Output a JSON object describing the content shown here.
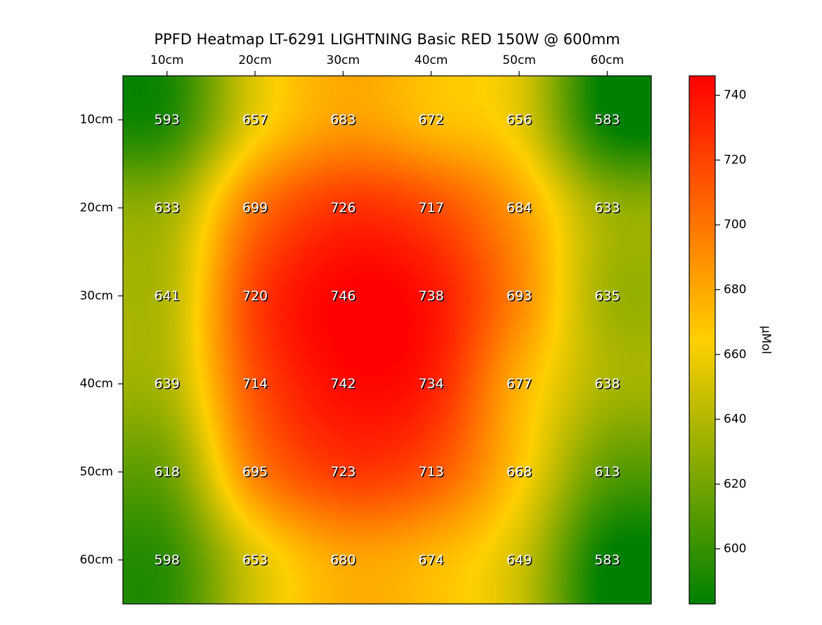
{
  "chart_data": {
    "type": "heatmap",
    "title": "PPFD Heatmap LT-6291 LIGHTNING Basic RED 150W @ 600mm",
    "x_categories": [
      "10cm",
      "20cm",
      "30cm",
      "40cm",
      "50cm",
      "60cm"
    ],
    "y_categories": [
      "10cm",
      "20cm",
      "30cm",
      "40cm",
      "50cm",
      "60cm"
    ],
    "x_axis_position": "top",
    "values": [
      [
        593,
        657,
        683,
        672,
        656,
        583
      ],
      [
        633,
        699,
        726,
        717,
        684,
        633
      ],
      [
        641,
        720,
        746,
        738,
        693,
        635
      ],
      [
        639,
        714,
        742,
        734,
        677,
        638
      ],
      [
        618,
        695,
        723,
        713,
        668,
        613
      ],
      [
        598,
        653,
        680,
        674,
        649,
        583
      ]
    ],
    "interpolation": "smooth",
    "grid": false,
    "colorbar": {
      "label": "µMol",
      "position": "right",
      "vmin": 583,
      "vmax": 746,
      "ticks": [
        "600",
        "620",
        "640",
        "660",
        "680",
        "700",
        "720",
        "740"
      ],
      "colormap": [
        "#008000",
        "#ffd000",
        "#ff0000"
      ]
    }
  }
}
